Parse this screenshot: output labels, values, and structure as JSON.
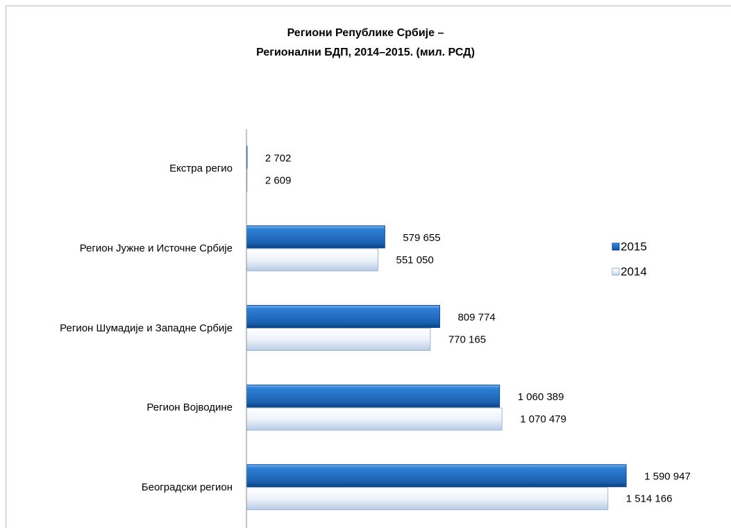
{
  "chart_data": {
    "type": "bar",
    "orientation": "horizontal",
    "title": "Региони Републике Србије –\nРегионални БДП, 2014–2015. (мил. РСД)",
    "categories": [
      "Екстра регио",
      "Регион Јужне и Источне Србије",
      "Регион Шумадије и Западне Србије",
      "Регион Војводине",
      "Београдски регион"
    ],
    "series": [
      {
        "name": "2015",
        "color": "#1f6fc5",
        "values": [
          2702,
          579655,
          809774,
          1060389,
          1590947
        ],
        "value_labels": [
          "2 702",
          "579 655",
          "809 774",
          "1 060 389",
          "1 590 947"
        ]
      },
      {
        "name": "2014",
        "color": "#dce6f2",
        "values": [
          2609,
          551050,
          770165,
          1070479,
          1514166
        ],
        "value_labels": [
          "2 609",
          "551 050",
          "770 165",
          "1 070 479",
          "1 514 166"
        ]
      }
    ],
    "xlim": [
      0,
      1800000
    ],
    "legend": "right"
  }
}
